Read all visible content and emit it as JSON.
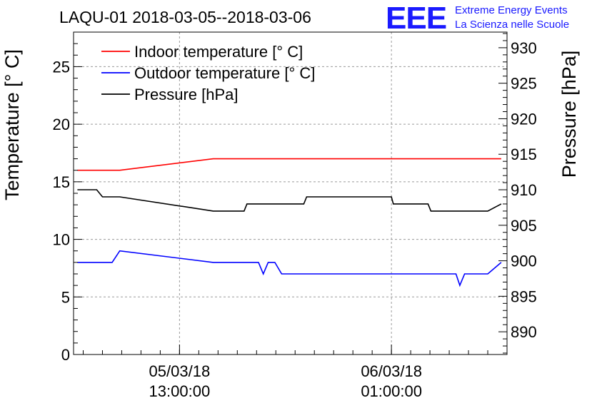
{
  "chart_data": {
    "type": "line",
    "title": "LAQU-01 2018-03-05--2018-03-06",
    "ylabel": "Temperature [° C]",
    "y2label": "Pressure [hPa]",
    "ylim": [
      0,
      28
    ],
    "y2lim": [
      886.8,
      932.2
    ],
    "xlim": [
      0,
      22.5
    ],
    "grid": true,
    "legend_position": "top-left",
    "y_ticks": [
      0,
      5,
      10,
      15,
      20,
      25
    ],
    "y2_ticks": [
      890,
      895,
      900,
      905,
      910,
      915,
      920,
      925,
      930
    ],
    "x_ticks": [
      {
        "x": 5.5,
        "date": "05/03/18",
        "time": "13:00:00"
      },
      {
        "x": 16.5,
        "date": "06/03/18",
        "time": "01:00:00"
      }
    ],
    "series": [
      {
        "name": "Indoor temperature [° C]",
        "color": "#ff0000",
        "axis": "left",
        "x": [
          0.2,
          2.4,
          7.25,
          22.2
        ],
        "values": [
          16,
          16,
          17,
          17
        ]
      },
      {
        "name": "Outdoor temperature [° C]",
        "color": "#0000ff",
        "axis": "left",
        "x": [
          0.2,
          2.0,
          2.4,
          7.25,
          9.6,
          9.85,
          10.1,
          10.45,
          10.8,
          19.85,
          20.05,
          20.3,
          21.5,
          22.2
        ],
        "values": [
          8,
          8,
          9,
          8,
          8,
          7,
          8,
          8,
          7,
          7,
          6,
          7,
          7,
          8
        ]
      },
      {
        "name": "Pressure [hPa]",
        "color": "#000000",
        "axis": "right",
        "x": [
          0.2,
          1.2,
          1.5,
          2.4,
          7.25,
          8.85,
          9.0,
          10.55,
          11.95,
          12.1,
          16.5,
          16.6,
          18.4,
          18.55,
          21.5,
          22.2
        ],
        "values": [
          910,
          910,
          909,
          909,
          907,
          907,
          908,
          908,
          908,
          909,
          909,
          908,
          908,
          907,
          907,
          908
        ]
      }
    ]
  },
  "logo": {
    "mark": "EEE",
    "line1": "Extreme Energy Events",
    "line2": "La Scienza nelle Scuole"
  }
}
